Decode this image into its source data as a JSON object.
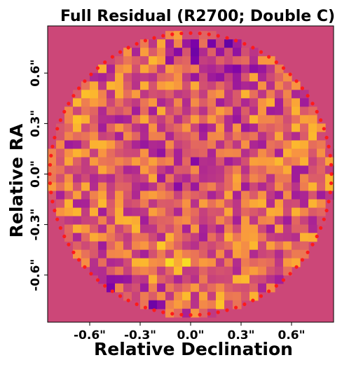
{
  "chart_data": {
    "type": "heatmap",
    "title": "Full Residual (R2700; Double C)",
    "xlabel": "Relative Declination",
    "ylabel": "Relative RA",
    "x_ticks": [
      "-0.6\"",
      "-0.3\"",
      "0.0\"",
      "0.3\"",
      "0.6\""
    ],
    "y_ticks": [
      "0.6\"",
      "0.3\"",
      "0.0\"",
      "-0.3\"",
      "-0.6\""
    ],
    "x_tick_values": [
      -0.6,
      -0.3,
      0.0,
      0.3,
      0.6
    ],
    "y_tick_values": [
      0.6,
      0.3,
      0.0,
      -0.3,
      -0.6
    ],
    "xlim": [
      -0.85,
      0.85
    ],
    "ylim": [
      -0.88,
      0.88
    ],
    "colormap": "plasma",
    "grid": false,
    "legend": "none",
    "mask_radius": 0.85,
    "background_color": "#cc4778",
    "marker_color": "#ff1a1a",
    "note_on_values": "Residual pixel values (normalized 0-1 on colormap) within circular aperture; individual pixel values are not labeled."
  }
}
